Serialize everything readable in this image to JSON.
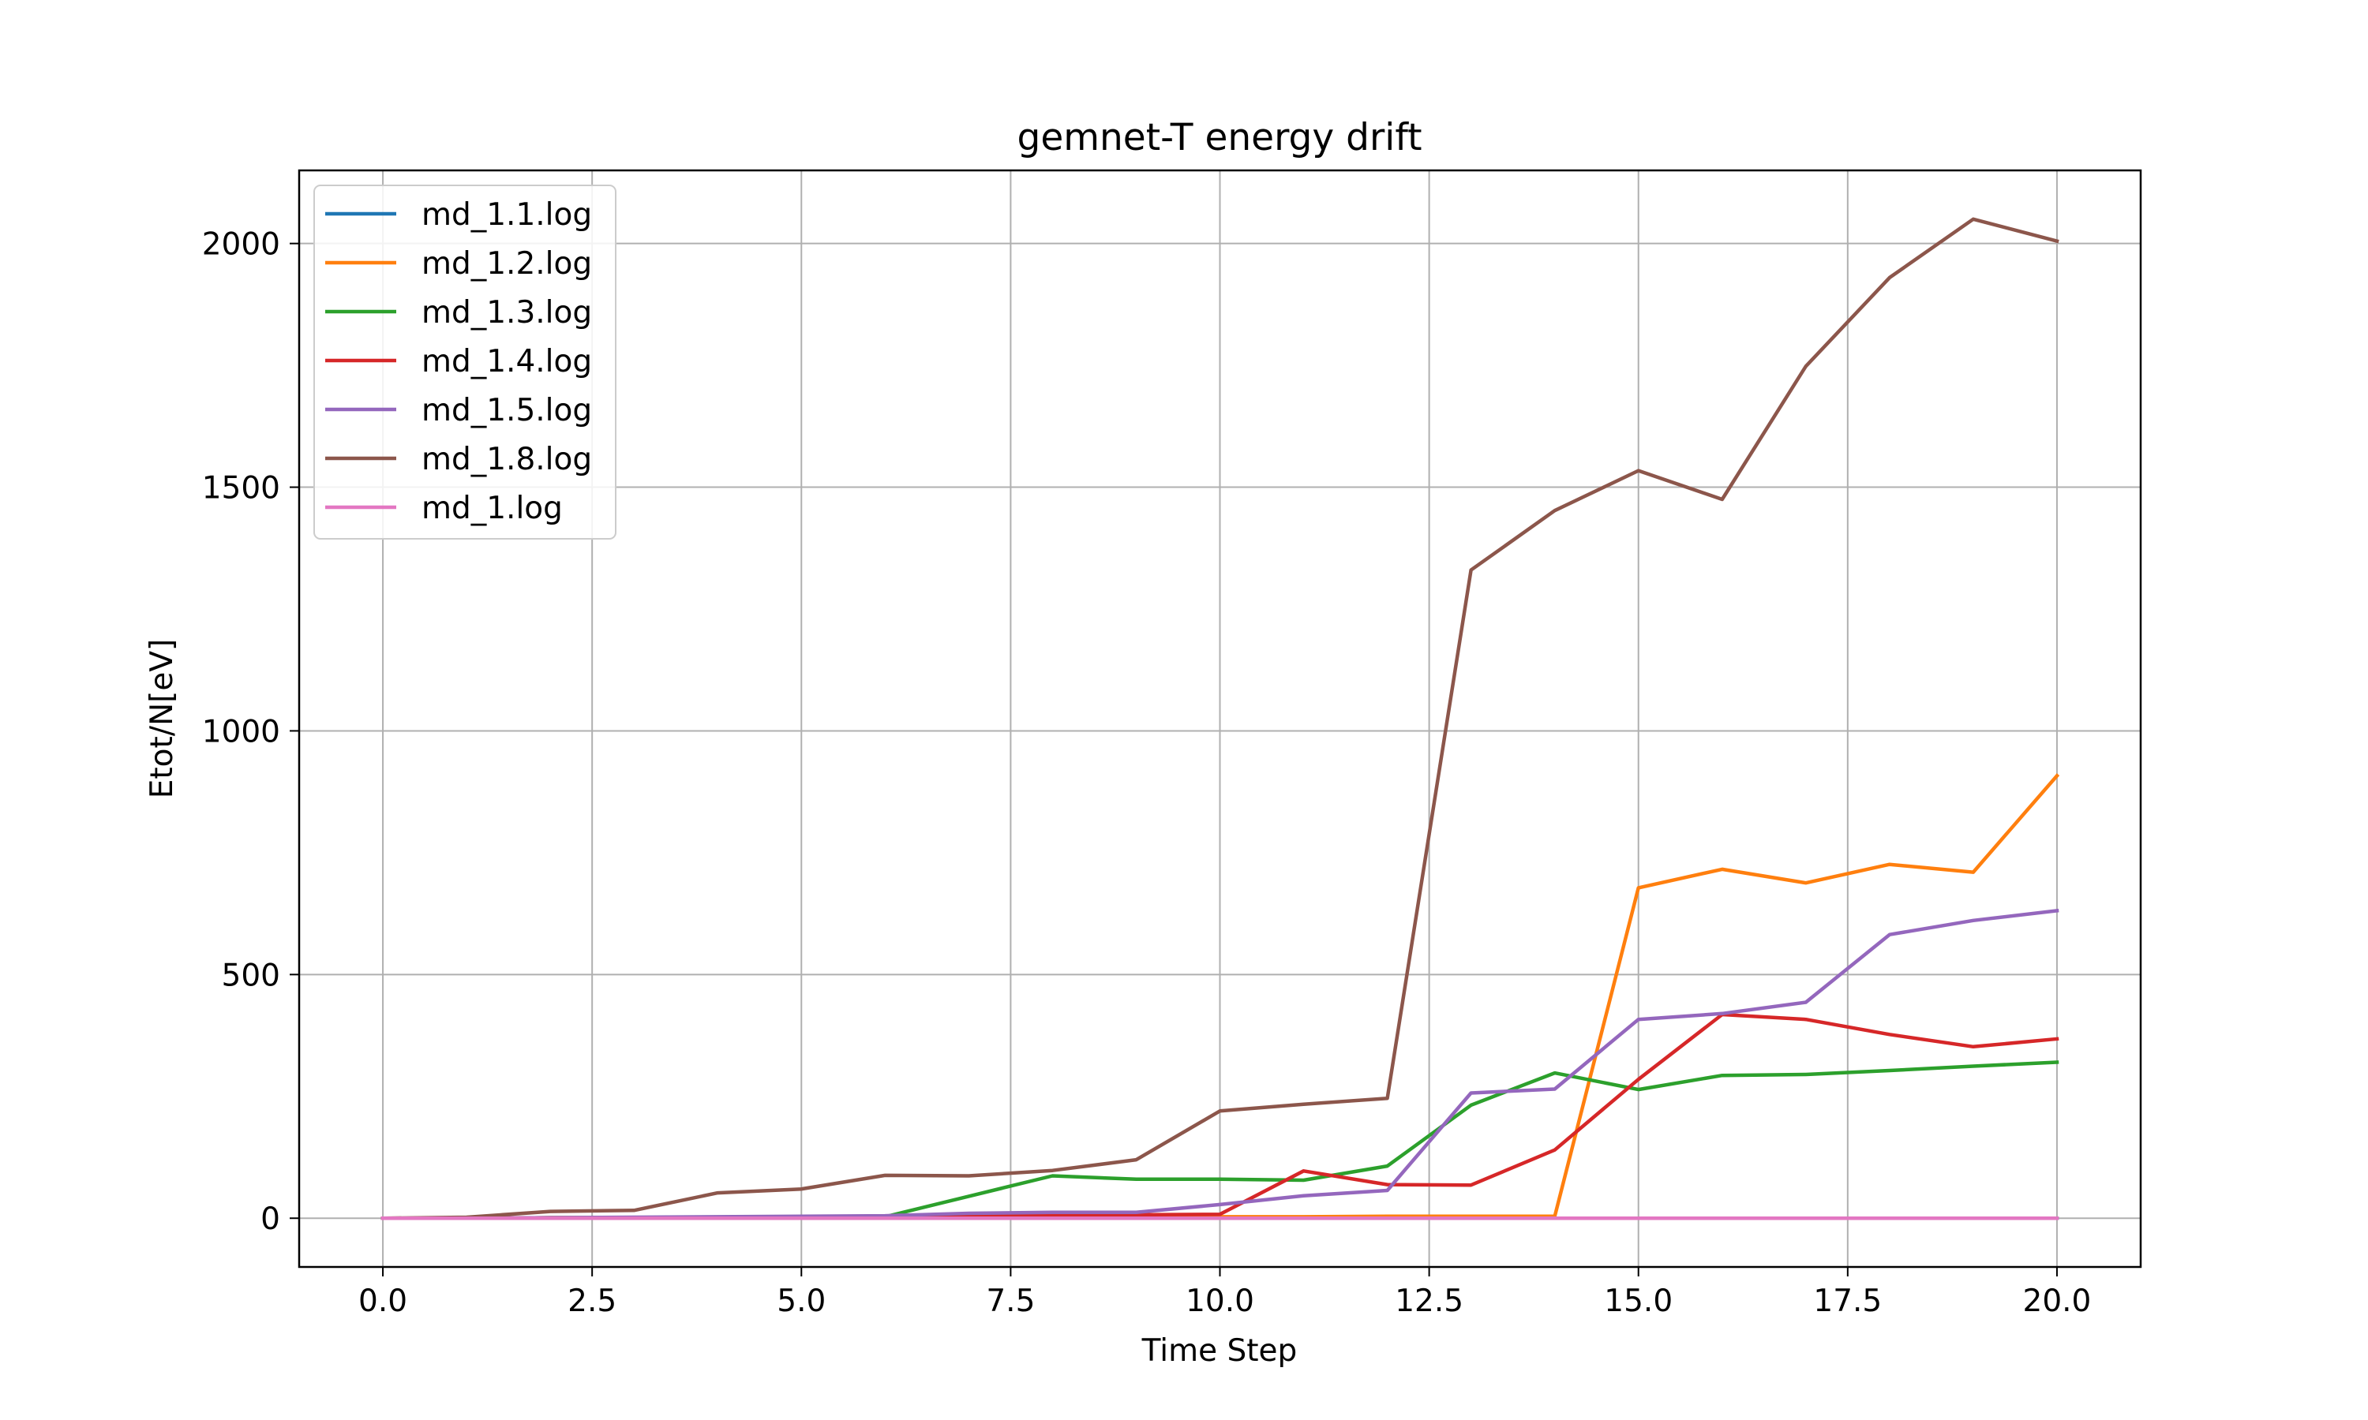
{
  "chart_data": {
    "type": "line",
    "title": "gemnet-T energy drift",
    "xlabel": "Time Step",
    "ylabel": "Etot/N[eV]",
    "xlim": [
      -1.0,
      21.0
    ],
    "ylim": [
      -100,
      2150
    ],
    "xticks": [
      0.0,
      2.5,
      5.0,
      7.5,
      10.0,
      12.5,
      15.0,
      17.5,
      20.0
    ],
    "xtick_labels": [
      "0.0",
      "2.5",
      "5.0",
      "7.5",
      "10.0",
      "12.5",
      "15.0",
      "17.5",
      "20.0"
    ],
    "yticks": [
      0,
      500,
      1000,
      1500,
      2000
    ],
    "ytick_labels": [
      "0",
      "500",
      "1000",
      "1500",
      "2000"
    ],
    "grid": true,
    "legend_position": "top-left",
    "x": [
      0,
      1,
      2,
      3,
      4,
      5,
      6,
      7,
      8,
      9,
      10,
      11,
      12,
      13,
      14,
      15,
      16,
      17,
      18,
      19,
      20
    ],
    "series": [
      {
        "name": "md_1.1.log",
        "color": "#1f77b4",
        "values": [
          0,
          0,
          0,
          0,
          0,
          0,
          0,
          0,
          0,
          0,
          0,
          0,
          0,
          0,
          0,
          0,
          0,
          0,
          0,
          0,
          0
        ]
      },
      {
        "name": "md_1.2.log",
        "color": "#ff7f0e",
        "values": [
          0,
          0,
          1,
          1,
          2,
          2,
          2,
          2,
          3,
          3,
          3,
          3,
          4,
          4,
          4,
          678,
          716,
          688,
          726,
          710,
          908
        ]
      },
      {
        "name": "md_1.3.log",
        "color": "#2ca02c",
        "values": [
          0,
          0,
          1,
          1,
          2,
          2,
          3,
          45,
          87,
          80,
          80,
          78,
          107,
          232,
          298,
          264,
          293,
          295,
          303,
          312,
          320
        ]
      },
      {
        "name": "md_1.4.log",
        "color": "#d62728",
        "values": [
          0,
          0,
          1,
          1,
          2,
          3,
          4,
          5,
          6,
          7,
          8,
          97,
          69,
          68,
          140,
          285,
          418,
          408,
          377,
          352,
          368
        ]
      },
      {
        "name": "md_1.5.log",
        "color": "#9467bd",
        "values": [
          0,
          0,
          1,
          2,
          3,
          4,
          5,
          10,
          12,
          12,
          28,
          46,
          57,
          257,
          265,
          408,
          420,
          443,
          582,
          611,
          631
        ]
      },
      {
        "name": "md_1.8.log",
        "color": "#8c564b",
        "values": [
          0,
          2,
          14,
          16,
          52,
          60,
          88,
          87,
          98,
          120,
          220,
          234,
          246,
          1330,
          1452,
          1534,
          1475,
          1748,
          1930,
          2050,
          2005
        ]
      },
      {
        "name": "md_1.log",
        "color": "#e377c2",
        "values": [
          0,
          0,
          0,
          0,
          0,
          0,
          0,
          0,
          0,
          0,
          0,
          0,
          0,
          0,
          0,
          0,
          0,
          0,
          0,
          0,
          0
        ]
      }
    ]
  }
}
